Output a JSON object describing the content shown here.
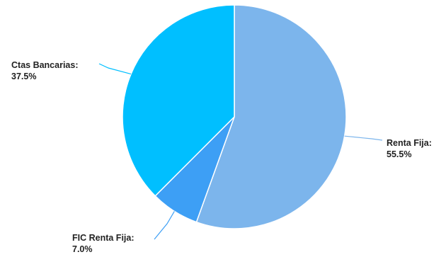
{
  "chart_data": {
    "type": "pie",
    "title": "",
    "legend": "none",
    "slices": [
      {
        "label": "Renta Fija:",
        "value": 55.5,
        "value_text": "55.5%",
        "color": "#7cb5ec"
      },
      {
        "label": "FIC Renta Fija:",
        "value": 7.0,
        "value_text": "7.0%",
        "color": "#3d9ff5"
      },
      {
        "label": "Ctas Bancarias:",
        "value": 37.5,
        "value_text": "37.5%",
        "color": "#00bfff"
      }
    ]
  }
}
